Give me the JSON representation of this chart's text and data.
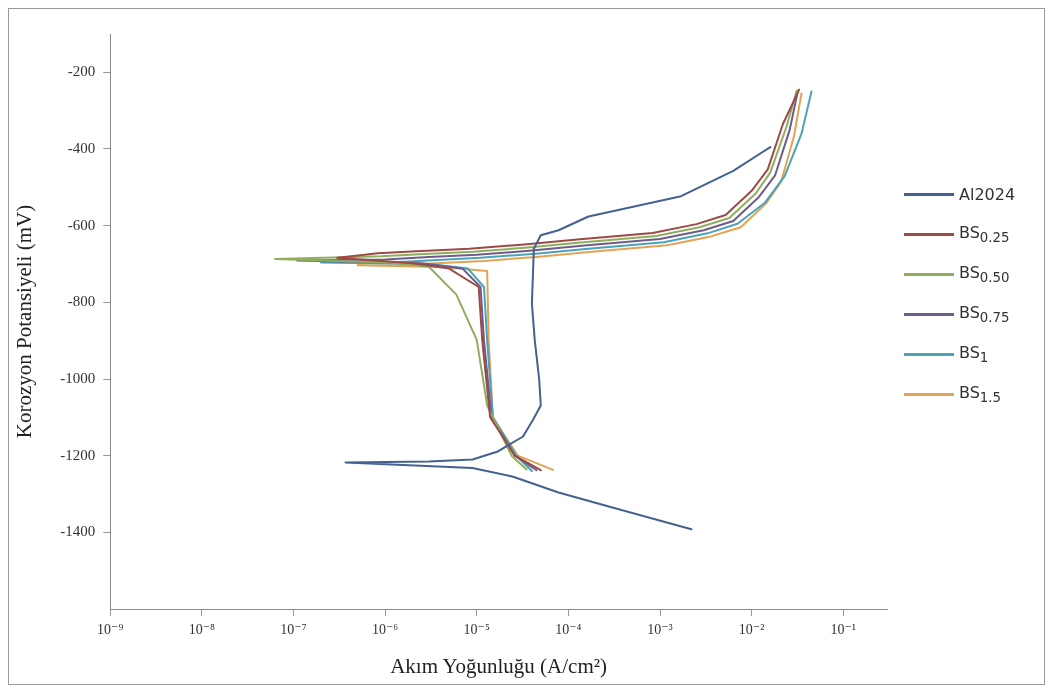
{
  "chart_data": {
    "type": "line",
    "xlabel": "Akım Yoğunluğu (A/cm²)",
    "ylabel": "Korozyon Potansiyeli (mV)",
    "log": "x",
    "grid": false,
    "legend": "right",
    "marker": "none",
    "line_style": "solid",
    "xlim": [
      1e-09,
      0.3
    ],
    "xticks": [
      {
        "value": 1e-09,
        "label": "10⁻⁹"
      },
      {
        "value": 1e-08,
        "label": "10⁻⁸"
      },
      {
        "value": 1e-07,
        "label": "10⁻⁷"
      },
      {
        "value": 1e-06,
        "label": "10⁻⁶"
      },
      {
        "value": 1e-05,
        "label": "10⁻⁵"
      },
      {
        "value": 0.0001,
        "label": "10⁻⁴"
      },
      {
        "value": 0.001,
        "label": "10⁻³"
      },
      {
        "value": 0.01,
        "label": "10⁻²"
      },
      {
        "value": 0.1,
        "label": "10⁻¹"
      }
    ],
    "ylim": [
      -1600,
      -100
    ],
    "yticks": [
      -1400,
      -1200,
      -1000,
      -800,
      -600,
      -400,
      -200
    ],
    "series": [
      {
        "name": "Al2024",
        "color": "#44618f",
        "x": [
          0.0022,
          0.00027,
          7.8e-05,
          2.5e-05,
          9e-06,
          3.7e-07,
          3e-06,
          9e-06,
          1.7e-05,
          3.2e-05,
          4.1e-05,
          5e-05,
          4.8e-05,
          4.3e-05,
          4e-05,
          4.2e-05,
          5e-05,
          7.8e-05,
          0.000166,
          0.0017,
          0.0063,
          0.016
        ],
        "values": [
          -1392,
          -1332,
          -1296,
          -1255,
          -1232,
          -1218,
          -1215,
          -1210,
          -1189,
          -1150,
          -1107,
          -1069,
          -1000,
          -900,
          -803,
          -660,
          -625,
          -612,
          -576,
          -523,
          -457,
          -395
        ]
      },
      {
        "name": "BS$_{0.25}$",
        "color": "#9b4a45",
        "x": [
          5e-05,
          2.6e-05,
          1.4e-05,
          1.15e-05,
          1.05e-05,
          5e-06,
          2e-06,
          3e-07,
          8.3e-07,
          2.5e-06,
          8.3e-06,
          3.3e-05,
          0.000125,
          0.00083,
          0.0025,
          0.0052,
          0.01,
          0.015,
          0.022,
          0.033
        ],
        "values": [
          -1238,
          -1200,
          -1100,
          -900,
          -760,
          -712,
          -698,
          -684,
          -672,
          -666,
          -660,
          -649,
          -636,
          -619,
          -596,
          -572,
          -509,
          -453,
          -334,
          -245
        ]
      },
      {
        "name": "BS$_{0.50}$",
        "color": "#8fae5c",
        "x": [
          3.5e-05,
          2.4e-05,
          1.3e-05,
          1e-05,
          6e-06,
          3e-06,
          1.2e-06,
          6.3e-08,
          9.1e-07,
          2.7e-06,
          9.1e-06,
          3.6e-05,
          0.000137,
          0.00091,
          0.0027,
          0.0057,
          0.011,
          0.016,
          0.024,
          0.031
        ],
        "values": [
          -1236,
          -1200,
          -1069,
          -898,
          -780,
          -707,
          -697,
          -687,
          -680,
          -674,
          -668,
          -657,
          -644,
          -627,
          -604,
          -580,
          -517,
          -461,
          -342,
          -248
        ]
      },
      {
        "name": "BS$_{0.75}$",
        "color": "#6e5b8c",
        "x": [
          4.5e-05,
          2.6e-05,
          1.45e-05,
          1.2e-05,
          1.1e-05,
          7e-06,
          2.5e-06,
          1.1e-07,
          1e-06,
          3e-06,
          1e-05,
          4e-05,
          0.00015,
          0.001,
          0.003,
          0.0063,
          0.012,
          0.018,
          0.026,
          0.032
        ],
        "values": [
          -1238,
          -1200,
          -1100,
          -900,
          -760,
          -712,
          -698,
          -691,
          -688,
          -682,
          -676,
          -665,
          -652,
          -635,
          -612,
          -588,
          -525,
          -469,
          -350,
          -248
        ]
      },
      {
        "name": "BS$_{1}$",
        "color": "#4ba3b8",
        "x": [
          4e-05,
          2.7e-05,
          1.5e-05,
          1.3e-05,
          1.2e-05,
          8e-06,
          3e-06,
          2e-07,
          1.1e-06,
          3.3e-06,
          1.1e-05,
          4.4e-05,
          0.000165,
          0.0011,
          0.0033,
          0.007,
          0.014,
          0.023,
          0.035,
          0.045
        ],
        "values": [
          -1240,
          -1200,
          -1100,
          -900,
          -760,
          -712,
          -700,
          -696,
          -696,
          -690,
          -684,
          -673,
          -660,
          -643,
          -620,
          -595,
          -540,
          -470,
          -360,
          -250
        ]
      },
      {
        "name": "BS$_{1.5}$",
        "color": "#e3a355",
        "x": [
          6.8e-05,
          2.8e-05,
          1.5e-05,
          1.35e-05,
          1.3e-05,
          4e-06,
          5e-07,
          1.2e-06,
          3.6e-06,
          1.2e-05,
          4.8e-05,
          0.00018,
          0.0012,
          0.0036,
          0.0076,
          0.0145,
          0.021,
          0.029,
          0.035
        ],
        "values": [
          -1237,
          -1200,
          -1100,
          -900,
          -718,
          -708,
          -703,
          -704,
          -698,
          -692,
          -681,
          -668,
          -651,
          -628,
          -604,
          -541,
          -485,
          -366,
          -255
        ]
      }
    ]
  }
}
